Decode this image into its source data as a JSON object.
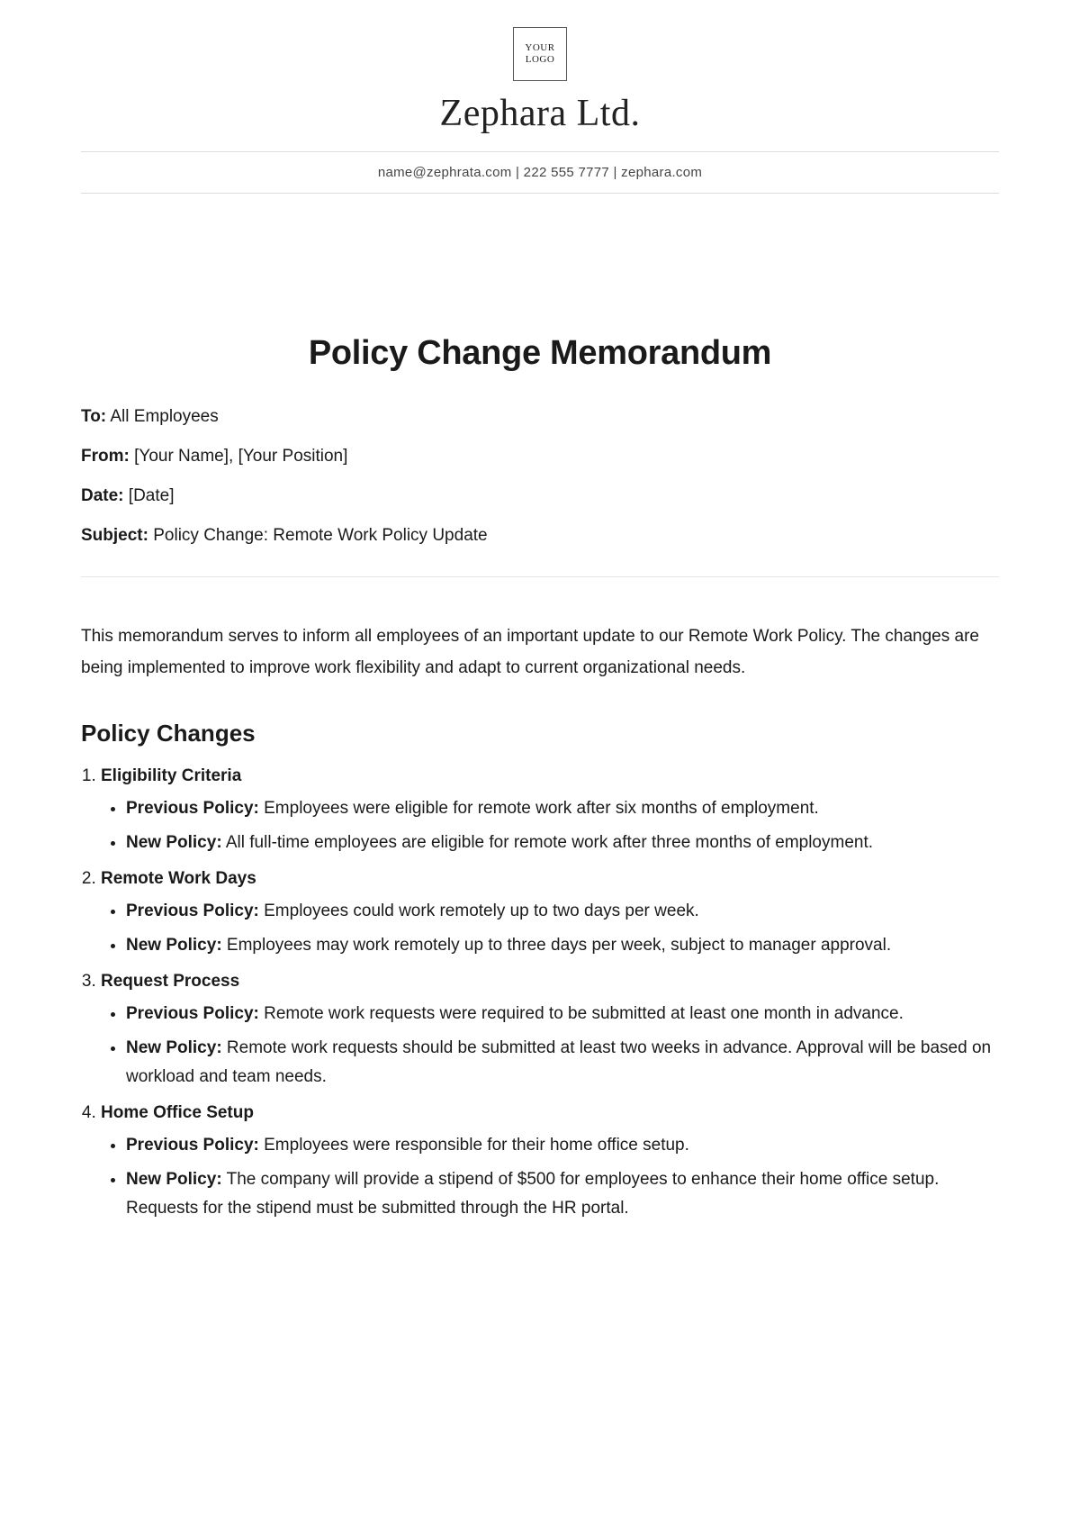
{
  "letterhead": {
    "logo_line1": "YOUR",
    "logo_line2": "LOGO",
    "company": "Zephara Ltd.",
    "contact": "name@zephrata.com | 222 555 7777 | zephara.com"
  },
  "title": "Policy Change Memorandum",
  "meta": {
    "to_label": "To:",
    "to_value": " All Employees",
    "from_label": "From:",
    "from_value": " [Your Name], [Your Position]",
    "date_label": "Date:",
    "date_value": " [Date]",
    "subject_label": "Subject:",
    "subject_value": " Policy Change: Remote Work Policy Update"
  },
  "intro": "This memorandum serves to inform all employees of an important update to our Remote Work Policy. The changes are being implemented to improve work flexibility and adapt to current organizational needs.",
  "section_heading": "Policy Changes",
  "labels": {
    "previous": "Previous Policy:",
    "new": "New Policy:"
  },
  "changes": [
    {
      "title": "Eligibility Criteria",
      "previous": " Employees were eligible for remote work after six months of employment.",
      "new": " All full-time employees are eligible for remote work after three months of employment."
    },
    {
      "title": "Remote Work Days",
      "previous": " Employees could work remotely up to two days per week.",
      "new": " Employees may work remotely up to three days per week, subject to manager approval."
    },
    {
      "title": "Request Process",
      "previous": " Remote work requests were required to be submitted at least one month in advance.",
      "new": " Remote work requests should be submitted at least two weeks in advance. Approval will be based on workload and team needs."
    },
    {
      "title": "Home Office Setup",
      "previous": " Employees were responsible for their home office setup.",
      "new": " The company will provide a stipend of $500 for employees to enhance their home office setup. Requests for the stipend must be submitted through the HR portal."
    }
  ],
  "colors": {
    "text": "#1a1a1a",
    "muted": "#444",
    "rule": "#ddd",
    "rule_mid": "#e5e5e5",
    "logo_border": "#555",
    "background": "#ffffff"
  },
  "typography": {
    "title_fontsize": 38,
    "company_fontsize": 42,
    "body_fontsize": 19,
    "section_heading_fontsize": 26,
    "company_font": "Georgia serif",
    "body_font": "Arial sans-serif"
  }
}
